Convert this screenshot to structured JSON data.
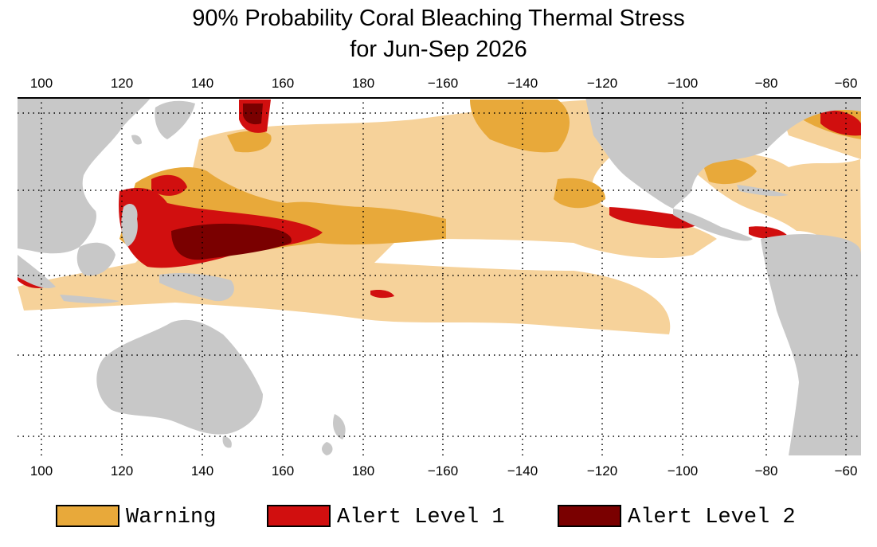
{
  "title": {
    "line1": "90% Probability Coral Bleaching Thermal Stress",
    "line2": "for Jun-Sep 2026"
  },
  "map": {
    "longitude_labels": [
      "100",
      "120",
      "140",
      "160",
      "180",
      "−160",
      "−140",
      "−120",
      "−100",
      "−80",
      "−60"
    ],
    "colors": {
      "land": "#c8c8c8",
      "ocean": "#ffffff",
      "grid": "#000000"
    }
  },
  "legend": [
    {
      "label": "Warning",
      "color": "#e8a93a"
    },
    {
      "label": "Alert Level 1",
      "color": "#d10f0f"
    },
    {
      "label": "Alert Level 2",
      "color": "#7a0000"
    }
  ],
  "overlay_colors": {
    "watch": "#f6d29a"
  }
}
